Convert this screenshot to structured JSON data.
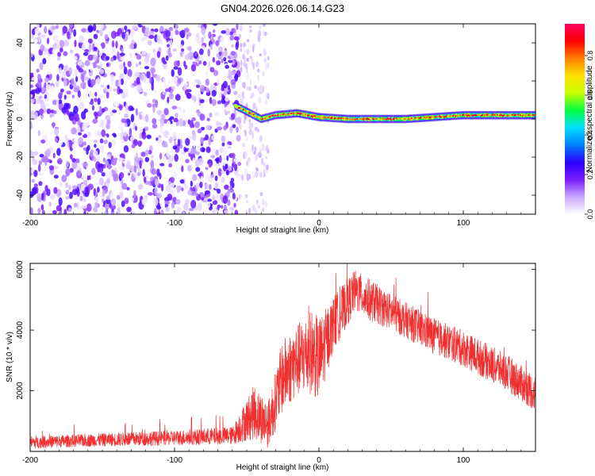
{
  "title": "GN04.2026.026.06.14.G23",
  "colorbar": {
    "label": "Normalized spectral amplitude",
    "ticks": [
      "0.0",
      "0.2",
      "0.4",
      "0.6",
      "0.8"
    ],
    "tick_values": [
      0.0,
      0.2,
      0.4,
      0.6,
      0.8
    ],
    "range": [
      0,
      0.96
    ],
    "colors": [
      "#ffffff",
      "#c8a8ff",
      "#7a1cff",
      "#2a00ff",
      "#0080ff",
      "#00e0ff",
      "#00ff40",
      "#c8ff00",
      "#ffe000",
      "#ff8000",
      "#ff0000",
      "#ff0060"
    ]
  },
  "chart_data": [
    {
      "type": "heatmap",
      "xlabel": "Height of straight line (km)",
      "ylabel": "Frequency (Hz)",
      "xlim": [
        -200,
        150
      ],
      "ylim": [
        -50,
        50
      ],
      "xticks": [
        -200,
        -100,
        0,
        100
      ],
      "yticks": [
        -40,
        -20,
        0,
        20,
        40
      ],
      "regions": [
        {
          "kind": "noise",
          "x_range": [
            -200,
            -55
          ],
          "y_range": [
            -50,
            50
          ],
          "amplitude": [
            0.0,
            0.25
          ]
        },
        {
          "kind": "sparse_noise",
          "x_range": [
            -55,
            -35
          ],
          "y_range": [
            -50,
            50
          ],
          "amplitude": [
            0.0,
            0.1
          ]
        },
        {
          "kind": "signal_line",
          "amplitude": [
            0.3,
            0.95
          ]
        }
      ],
      "signal_track": [
        {
          "x": -58,
          "y": 7
        },
        {
          "x": -50,
          "y": 4
        },
        {
          "x": -40,
          "y": 0
        },
        {
          "x": -30,
          "y": 2
        },
        {
          "x": -15,
          "y": 3
        },
        {
          "x": 0,
          "y": 1
        },
        {
          "x": 20,
          "y": 0
        },
        {
          "x": 60,
          "y": 0
        },
        {
          "x": 100,
          "y": 2
        },
        {
          "x": 150,
          "y": 2
        }
      ]
    },
    {
      "type": "line",
      "xlabel": "Height of straight line (km)",
      "ylabel": "SNR (10 * v/v)",
      "xlim": [
        -200,
        150
      ],
      "ylim": [
        0,
        6200
      ],
      "xticks": [
        -200,
        -100,
        0,
        100
      ],
      "yticks": [
        2000,
        4000,
        6000
      ],
      "color": "#f03030",
      "envelope": [
        {
          "x": -200,
          "mean": 300,
          "spread": 200
        },
        {
          "x": -150,
          "mean": 380,
          "spread": 220
        },
        {
          "x": -100,
          "mean": 450,
          "spread": 250
        },
        {
          "x": -60,
          "mean": 520,
          "spread": 300
        },
        {
          "x": -45,
          "mean": 1300,
          "spread": 900
        },
        {
          "x": -35,
          "mean": 900,
          "spread": 800
        },
        {
          "x": -25,
          "mean": 2500,
          "spread": 1200
        },
        {
          "x": -15,
          "mean": 3000,
          "spread": 1200
        },
        {
          "x": -5,
          "mean": 3300,
          "spread": 1400
        },
        {
          "x": 0,
          "mean": 3000,
          "spread": 1400
        },
        {
          "x": 10,
          "mean": 4200,
          "spread": 900
        },
        {
          "x": 25,
          "mean": 5300,
          "spread": 700
        },
        {
          "x": 35,
          "mean": 5000,
          "spread": 700
        },
        {
          "x": 50,
          "mean": 4600,
          "spread": 600
        },
        {
          "x": 80,
          "mean": 3800,
          "spread": 600
        },
        {
          "x": 100,
          "mean": 3400,
          "spread": 600
        },
        {
          "x": 130,
          "mean": 2600,
          "spread": 600
        },
        {
          "x": 150,
          "mean": 1900,
          "spread": 600
        }
      ]
    }
  ]
}
